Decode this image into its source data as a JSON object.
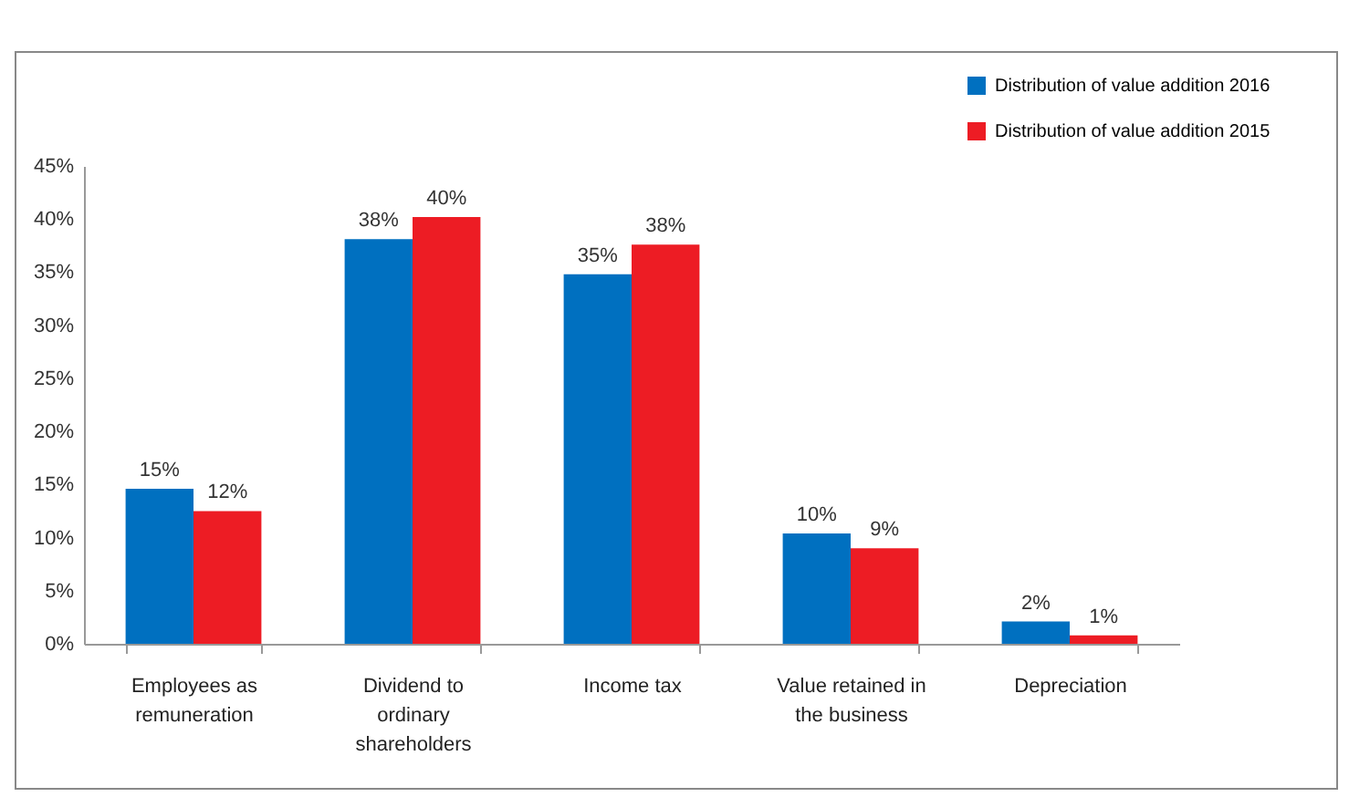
{
  "chart_data": {
    "type": "bar",
    "categories": [
      "Employees as remuneration",
      "Dividend to ordinary shareholders",
      "Income tax",
      "Value retained in the business",
      "Depreciation"
    ],
    "series": [
      {
        "name": "Distribution of value addition 2016",
        "color": "#0070c0",
        "values": [
          14.6,
          38.1,
          34.8,
          10.4,
          2.1
        ],
        "value_labels": [
          "15%",
          "38%",
          "35%",
          "10%",
          "2%"
        ]
      },
      {
        "name": "Distribution of value addition 2015",
        "color": "#ed1c24",
        "values": [
          12.5,
          40.2,
          37.6,
          9.0,
          0.8
        ],
        "value_labels": [
          "12%",
          "40%",
          "38%",
          "9%",
          "1%"
        ]
      }
    ],
    "ylim": [
      0,
      45
    ],
    "yticks": [
      {
        "value": 0,
        "label": "0%"
      },
      {
        "value": 5,
        "label": "5%"
      },
      {
        "value": 10,
        "label": "10%"
      },
      {
        "value": 15,
        "label": "15%"
      },
      {
        "value": 20,
        "label": "20%"
      },
      {
        "value": 25,
        "label": "25%"
      },
      {
        "value": 30,
        "label": "30%"
      },
      {
        "value": 35,
        "label": "35%"
      },
      {
        "value": 40,
        "label": "40%"
      },
      {
        "value": 45,
        "label": "45%"
      }
    ],
    "grid": false,
    "legend": "top right"
  }
}
